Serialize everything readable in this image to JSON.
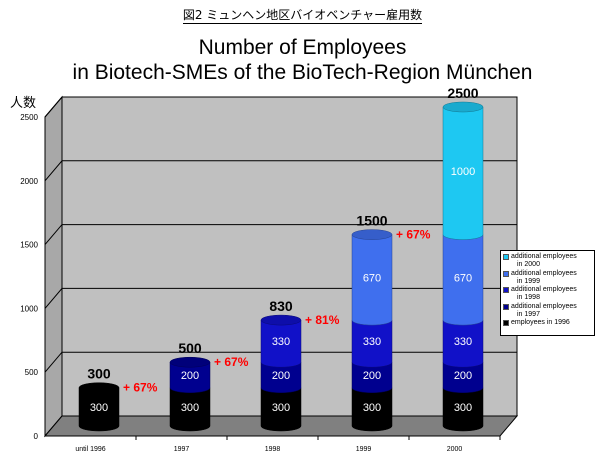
{
  "page_title": "図2 ミュンヘン地区バイオベンチャー雇用数",
  "chart_data": {
    "type": "bar",
    "stacked": true,
    "three_d": true,
    "title_line1": "Number of Employees",
    "title_line2": "in Biotech-SMEs of the BioTech-Region München",
    "ylabel": "人数",
    "ylim": [
      0,
      2500
    ],
    "yticks": [
      0,
      500,
      1000,
      1500,
      2000,
      2500
    ],
    "categories": [
      "until 1996",
      "1997",
      "1998",
      "1999",
      "2000"
    ],
    "totals": [
      300,
      500,
      830,
      1500,
      2500
    ],
    "series": [
      {
        "name": "employees in 1996",
        "color": "#000000",
        "values": [
          300,
          300,
          300,
          300,
          300
        ]
      },
      {
        "name": "additional employees in 1997",
        "color": "#00008f",
        "values": [
          0,
          200,
          200,
          200,
          200
        ]
      },
      {
        "name": "additional employees in 1998",
        "color": "#1111c8",
        "values": [
          0,
          0,
          330,
          330,
          330
        ]
      },
      {
        "name": "additional employees in 1999",
        "color": "#3f6fee",
        "values": [
          0,
          0,
          0,
          670,
          670
        ]
      },
      {
        "name": "additional employees in 2000",
        "color": "#1ec8f2",
        "values": [
          0,
          0,
          0,
          0,
          1000
        ]
      }
    ],
    "growth_annotations": [
      "+ 67%",
      "+ 67%",
      "+ 81%",
      "+ 67%"
    ],
    "grid": true,
    "legend_position": "right",
    "legend_entries": [
      {
        "line1": "additional employees",
        "line2": "in 2000",
        "color": "#1ec8f2"
      },
      {
        "line1": "additional employees",
        "line2": "in 1999",
        "color": "#3f6fee"
      },
      {
        "line1": "additional employees",
        "line2": "in 1998",
        "color": "#1111c8"
      },
      {
        "line1": "additional employees",
        "line2": "in 1997",
        "color": "#00008f"
      },
      {
        "line1": "employees in 1996",
        "line2": "",
        "color": "#000000"
      }
    ],
    "colors": {
      "wall": "#c0c0c0",
      "floor": "#808080",
      "annotation": "#ff0000"
    }
  }
}
